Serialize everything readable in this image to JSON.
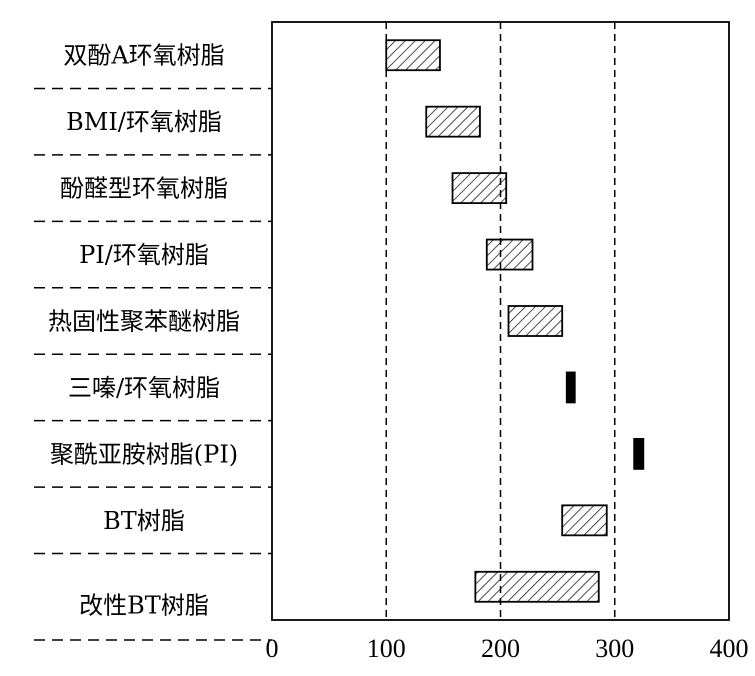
{
  "chart_data": {
    "type": "bar",
    "orientation": "horizontal",
    "title": "",
    "xlabel": "",
    "ylabel": "",
    "xlim": [
      0,
      400
    ],
    "x_ticks": [
      "0",
      "100",
      "200",
      "300",
      "400"
    ],
    "reference_lines_x": [
      100,
      200,
      300
    ],
    "grid": false,
    "legend": "none",
    "categories": [
      "双酚A环氧树脂",
      "BMI/环氧树脂",
      "酚醛型环氧树脂",
      "PI/环氧树脂",
      "热固性聚苯醚树脂",
      "三嗪/环氧树脂",
      "聚酰亚胺树脂(PI)",
      "BT树脂",
      "改性BT树脂"
    ],
    "ranges": [
      {
        "min": 100,
        "max": 147,
        "style": "hatched"
      },
      {
        "min": 135,
        "max": 182,
        "style": "hatched"
      },
      {
        "min": 158,
        "max": 205,
        "style": "hatched"
      },
      {
        "min": 188,
        "max": 228,
        "style": "hatched"
      },
      {
        "min": 207,
        "max": 254,
        "style": "hatched"
      },
      {
        "min": 258,
        "max": 265,
        "style": "solid"
      },
      {
        "min": 317,
        "max": 325,
        "style": "solid"
      },
      {
        "min": 254,
        "max": 293,
        "style": "hatched"
      },
      {
        "min": 178,
        "max": 286,
        "style": "hatched"
      }
    ],
    "colors": {
      "stroke": "#000000",
      "solid_fill": "#000000",
      "background": "#ffffff"
    }
  }
}
